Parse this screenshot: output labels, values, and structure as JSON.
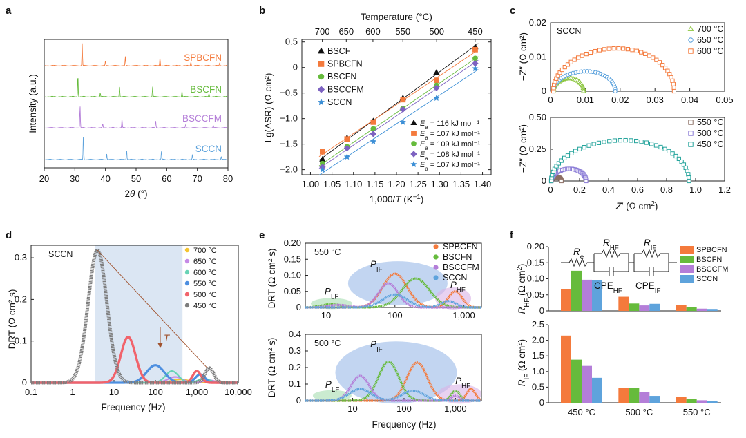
{
  "panel_labels": [
    "a",
    "b",
    "c",
    "d",
    "e",
    "f"
  ],
  "colors": {
    "SPBCFN": "#f47a3c",
    "BSCFN": "#66bb3c",
    "BSCCFM": "#b47ed8",
    "SCCN": "#5ea3dc",
    "BSCF": "#111111",
    "BSCCFM_b": "#7d62c1",
    "SCCN_b": "#3c8fd6",
    "T700": "#8cc63f",
    "T650": "#5aa1dc",
    "T600": "#f47a3c",
    "T550": "#8c6f64",
    "T500": "#8a7bd6",
    "T450": "#23a39b",
    "d700": "#f4c430",
    "d650": "#c58ae6",
    "d600": "#68d3b6",
    "d550": "#4d8fe0",
    "d500": "#f1636b",
    "d450": "#7d7d7d",
    "shade": "#dbe6f3",
    "ellipse": "#8fb3e6"
  },
  "chart_data": [
    {
      "id": "a",
      "type": "line",
      "title": "",
      "xlabel": "2θ (°)",
      "ylabel": "Intensity (a.u.)",
      "xlim": [
        20,
        80
      ],
      "xticks": [
        "20",
        "30",
        "40",
        "50",
        "60",
        "70",
        "80"
      ],
      "series": [
        {
          "name": "SPBCFN",
          "peaks": [
            [
              32.4,
              1.0
            ],
            [
              40.0,
              0.22
            ],
            [
              46.5,
              0.4
            ],
            [
              57.8,
              0.35
            ],
            [
              67.9,
              0.18
            ],
            [
              77.3,
              0.12
            ]
          ]
        },
        {
          "name": "BSCFN",
          "peaks": [
            [
              31.0,
              1.0
            ],
            [
              38.3,
              0.18
            ],
            [
              44.6,
              0.45
            ],
            [
              55.4,
              0.45
            ],
            [
              65.0,
              0.25
            ],
            [
              73.8,
              0.15
            ]
          ]
        },
        {
          "name": "BSCCFM",
          "peaks": [
            [
              31.7,
              1.0
            ],
            [
              39.1,
              0.18
            ],
            [
              45.4,
              0.38
            ],
            [
              56.4,
              0.32
            ],
            [
              66.2,
              0.15
            ],
            [
              75.2,
              0.1
            ]
          ]
        },
        {
          "name": "SCCN",
          "peaks": [
            [
              32.8,
              1.0
            ],
            [
              40.4,
              0.22
            ],
            [
              46.9,
              0.4
            ],
            [
              58.3,
              0.35
            ],
            [
              68.4,
              0.18
            ],
            [
              77.8,
              0.12
            ]
          ]
        }
      ]
    },
    {
      "id": "b",
      "type": "scatter",
      "xlabel": "1,000/T (K⁻¹)",
      "ylabel": "Lg(ASR) (Ω cm²)",
      "top_axis_label": "Temperature (°C)",
      "top_ticks": [
        "700",
        "650",
        "600",
        "550",
        "500",
        "450"
      ],
      "xlim": [
        0.98,
        1.42
      ],
      "ylim": [
        -2.1,
        0.55
      ],
      "xticks": [
        "1.00",
        "1.05",
        "1.10",
        "1.15",
        "1.20",
        "1.25",
        "1.30",
        "1.35",
        "1.40"
      ],
      "yticks": [
        "−2.0",
        "−1.5",
        "−1.0",
        "−0.5",
        "0",
        "0.5"
      ],
      "x": [
        1.028,
        1.085,
        1.146,
        1.215,
        1.293,
        1.383
      ],
      "series": [
        {
          "name": "BSCF",
          "ea": "116 kJ mol⁻¹",
          "values": [
            -1.8,
            -1.38,
            -1.05,
            -0.6,
            -0.1,
            0.4
          ]
        },
        {
          "name": "SPBCFN",
          "ea": "107 kJ mol⁻¹",
          "values": [
            -1.65,
            -1.4,
            -1.07,
            -0.63,
            -0.25,
            0.35
          ]
        },
        {
          "name": "BSCFN",
          "ea": "109 kJ mol⁻¹",
          "values": [
            -1.88,
            -1.55,
            -1.2,
            -0.8,
            -0.35,
            0.18
          ]
        },
        {
          "name": "BSCCFM",
          "ea": "108 kJ mol⁻¹",
          "values": [
            -1.95,
            -1.58,
            -1.3,
            -0.82,
            -0.4,
            0.08
          ]
        },
        {
          "name": "SCCN",
          "ea": "107 kJ mol⁻¹",
          "values": [
            -2.0,
            -1.75,
            -1.45,
            -1.07,
            -0.6,
            -0.02
          ]
        }
      ]
    },
    {
      "id": "c_top",
      "type": "scatter",
      "title": "SCCN",
      "xlabel": "",
      "ylabel": "−Z″ (Ω cm²)",
      "xlim": [
        0,
        0.05
      ],
      "ylim": [
        0,
        0.02
      ],
      "xticks": [
        "0",
        "0.01",
        "0.02",
        "0.03",
        "0.04",
        "0.05"
      ],
      "yticks": [
        "0",
        "0.01",
        "0.02"
      ],
      "series": [
        {
          "name": "700 °C",
          "arc": [
            0.0008,
            0.0095
          ],
          "peak": 0.0037
        },
        {
          "name": "650 °C",
          "arc": [
            0.0008,
            0.0186
          ],
          "peak": 0.0058
        },
        {
          "name": "600 °C",
          "arc": [
            0.0008,
            0.0355
          ],
          "peak": 0.0125
        }
      ]
    },
    {
      "id": "c_bottom",
      "type": "scatter",
      "xlabel": "Z′ (Ω cm²)",
      "ylabel": "−Z″ (Ω cm²)",
      "xlim": [
        0,
        1.2
      ],
      "ylim": [
        0,
        0.5
      ],
      "xticks": [
        "0",
        "0.2",
        "0.4",
        "0.6",
        "0.8",
        "1.0",
        "1.2"
      ],
      "yticks": [
        "0",
        "0.25",
        "0.50"
      ],
      "series": [
        {
          "name": "550 °C",
          "arc": [
            0.005,
            0.075
          ],
          "peak": 0.03
        },
        {
          "name": "500 °C",
          "arc": [
            0.005,
            0.245
          ],
          "peak": 0.095
        },
        {
          "name": "450 °C",
          "arc": [
            0.005,
            0.955
          ],
          "peak": 0.32
        }
      ]
    },
    {
      "id": "d",
      "type": "area",
      "title": "SCCN",
      "xlabel": "Frequency (Hz)",
      "ylabel": "DRT (Ω cm² s)",
      "xscale": "log",
      "xlim": [
        0.1,
        10000
      ],
      "ylim": [
        0,
        0.33
      ],
      "xticks": [
        "0.1",
        "1",
        "10",
        "100",
        "1,000",
        "10,000"
      ],
      "yticks": [
        "0",
        "0.1",
        "0.2",
        "0.3"
      ],
      "annotation": "T",
      "series": [
        {
          "name": "700 °C",
          "peaks": [
            [
              400,
              0.008,
              0.3
            ],
            [
              3000,
              0.004,
              0.2
            ]
          ]
        },
        {
          "name": "650 °C",
          "peaks": [
            [
              300,
              0.014,
              0.25
            ],
            [
              2000,
              0.006,
              0.2
            ]
          ]
        },
        {
          "name": "600 °C",
          "peaks": [
            [
              250,
              0.028,
              0.22
            ],
            [
              1500,
              0.01,
              0.2
            ]
          ]
        },
        {
          "name": "550 °C",
          "peaks": [
            [
              100,
              0.042,
              0.3
            ],
            [
              1200,
              0.02,
              0.16
            ]
          ]
        },
        {
          "name": "500 °C",
          "peaks": [
            [
              22,
              0.11,
              0.25
            ],
            [
              1000,
              0.028,
              0.14
            ]
          ]
        },
        {
          "name": "450 °C",
          "peaks": [
            [
              4,
              0.318,
              0.32
            ],
            [
              2000,
              0.035,
              0.15
            ]
          ]
        }
      ]
    },
    {
      "id": "e_top",
      "type": "area",
      "title": "550 °C",
      "xlabel": "",
      "ylabel": "DRT (Ω cm² s)",
      "xscale": "log",
      "xlim": [
        5,
        1800
      ],
      "ylim": [
        0,
        0.2
      ],
      "xticks": [
        "10",
        "100",
        "1,000"
      ],
      "yticks": [
        "0",
        "0.05",
        "0.10",
        "0.15",
        "0.20"
      ],
      "annotations": [
        "PLF",
        "PIF",
        "PHF"
      ],
      "series": [
        {
          "name": "SPBCFN",
          "peaks": [
            [
              100,
              0.105,
              0.25
            ],
            [
              750,
              0.05,
              0.14
            ]
          ]
        },
        {
          "name": "BSCFN",
          "peaks": [
            [
              200,
              0.09,
              0.28
            ],
            [
              12,
              0.01,
              0.2
            ]
          ]
        },
        {
          "name": "BSCCFM",
          "peaks": [
            [
              80,
              0.075,
              0.2
            ],
            [
              15,
              0.008,
              0.2
            ]
          ]
        },
        {
          "name": "SCCN",
          "peaks": [
            [
              100,
              0.04,
              0.25
            ],
            [
              600,
              0.02,
              0.15
            ]
          ]
        }
      ]
    },
    {
      "id": "e_bottom",
      "type": "area",
      "title": "500 °C",
      "xlabel": "Frequency (Hz)",
      "ylabel": "DRT (Ω cm² s)",
      "xscale": "log",
      "xlim": [
        1.2,
        3200
      ],
      "ylim": [
        0,
        0.4
      ],
      "xticks": [
        "10",
        "100",
        "1,000"
      ],
      "yticks": [
        "0",
        "0.1",
        "0.2",
        "0.3",
        "0.4"
      ],
      "annotations": [
        "PLF",
        "PIF",
        "PHF"
      ],
      "series": [
        {
          "name": "SPBCFN",
          "peaks": [
            [
              180,
              0.23,
              0.28
            ],
            [
              2000,
              0.07,
              0.12
            ]
          ]
        },
        {
          "name": "BSCFN",
          "peaks": [
            [
              50,
              0.235,
              0.28
            ],
            [
              1000,
              0.06,
              0.12
            ]
          ]
        },
        {
          "name": "BSCCFM",
          "peaks": [
            [
              14,
              0.15,
              0.25
            ],
            [
              1000,
              0.03,
              0.12
            ]
          ]
        },
        {
          "name": "SCCN",
          "peaks": [
            [
              14,
              0.07,
              0.3
            ],
            [
              150,
              0.06,
              0.3
            ]
          ]
        }
      ]
    },
    {
      "id": "f",
      "type": "bar",
      "categories": [
        "450 °C",
        "500 °C",
        "550 °C"
      ],
      "legend": [
        "SPBCFN",
        "BSCFN",
        "BSCCFM",
        "SCCN"
      ],
      "circuit_labels": [
        "Re",
        "RHF",
        "RIF",
        "CPEHF",
        "CPEIF"
      ],
      "top": {
        "ylabel": "RHF (Ω cm²)",
        "ylim": [
          0,
          0.2
        ],
        "yticks": [
          "0",
          "0.05",
          "0.10",
          "0.15",
          "0.20"
        ],
        "series": [
          {
            "name": "SPBCFN",
            "values": [
              0.068,
              0.044,
              0.018
            ]
          },
          {
            "name": "BSCFN",
            "values": [
              0.125,
              0.023,
              0.011
            ]
          },
          {
            "name": "BSCCFM",
            "values": [
              0.097,
              0.017,
              0.007
            ]
          },
          {
            "name": "SCCN",
            "values": [
              0.095,
              0.022,
              0.006
            ]
          }
        ]
      },
      "bottom": {
        "ylabel": "RIF (Ω cm²)",
        "ylim": [
          0,
          2.5
        ],
        "yticks": [
          "0",
          "0.5",
          "1.0",
          "1.5",
          "2.0",
          "2.5"
        ],
        "series": [
          {
            "name": "SPBCFN",
            "values": [
              2.15,
              0.48,
              0.18
            ]
          },
          {
            "name": "BSCFN",
            "values": [
              1.38,
              0.48,
              0.13
            ]
          },
          {
            "name": "BSCCFM",
            "values": [
              1.18,
              0.35,
              0.08
            ]
          },
          {
            "name": "SCCN",
            "values": [
              0.8,
              0.22,
              0.06
            ]
          }
        ]
      }
    }
  ]
}
